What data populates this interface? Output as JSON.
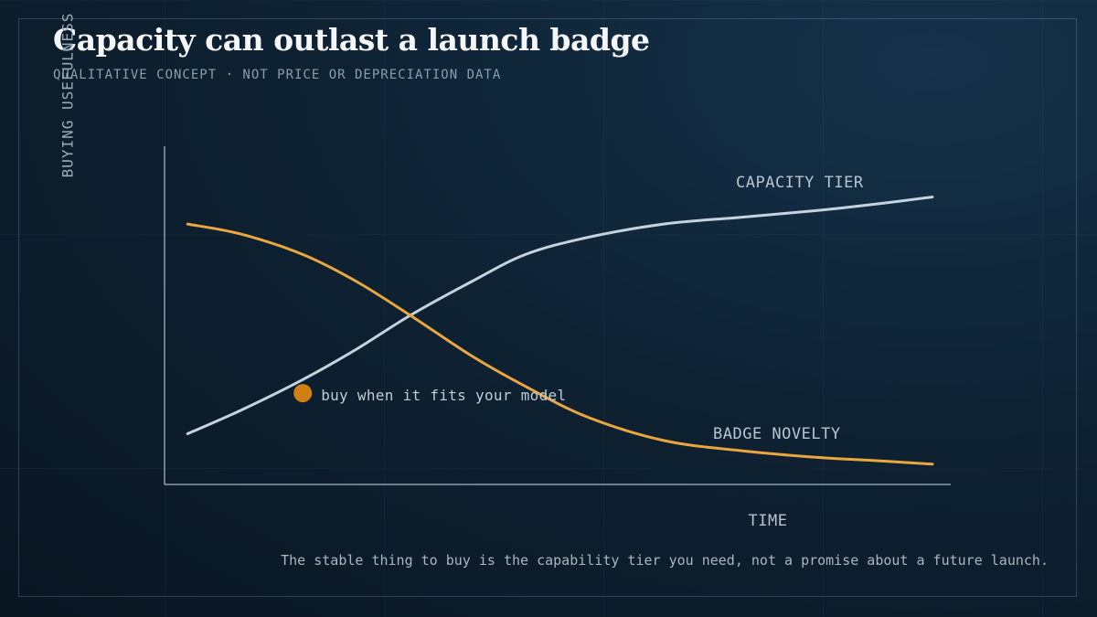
{
  "header": {
    "title": "Capacity can outlast a launch badge",
    "subtitle": "QUALITATIVE CONCEPT · NOT PRICE OR DEPRECIATION DATA"
  },
  "footer": {
    "note": "The stable thing to buy is the capability tier you need, not a promise about a future launch."
  },
  "colors": {
    "capacity": "#c5d3df",
    "novelty": "#e9a73e",
    "marker": "#cf7f14",
    "axis": "#8d9dab"
  },
  "chart_data": {
    "type": "line",
    "xlabel": "TIME",
    "ylabel": "BUYING USEFULNESS",
    "xlim": [
      0,
      1
    ],
    "ylim": [
      0,
      1
    ],
    "series": [
      {
        "name": "CAPACITY TIER",
        "x": [
          0.03,
          0.1,
          0.18,
          0.25,
          0.32,
          0.4,
          0.47,
          0.55,
          0.65,
          0.75,
          0.85,
          0.93,
          1.0
        ],
        "y": [
          0.15,
          0.22,
          0.31,
          0.4,
          0.5,
          0.6,
          0.68,
          0.73,
          0.77,
          0.79,
          0.81,
          0.83,
          0.85
        ]
      },
      {
        "name": "BADGE NOVELTY",
        "x": [
          0.03,
          0.1,
          0.18,
          0.25,
          0.32,
          0.4,
          0.47,
          0.55,
          0.65,
          0.75,
          0.85,
          0.93,
          1.0
        ],
        "y": [
          0.77,
          0.74,
          0.68,
          0.6,
          0.5,
          0.38,
          0.29,
          0.2,
          0.13,
          0.1,
          0.08,
          0.07,
          0.06
        ]
      }
    ],
    "annotations": [
      {
        "text": "buy when it fits your model",
        "x": 0.18,
        "y": 0.27
      }
    ]
  }
}
